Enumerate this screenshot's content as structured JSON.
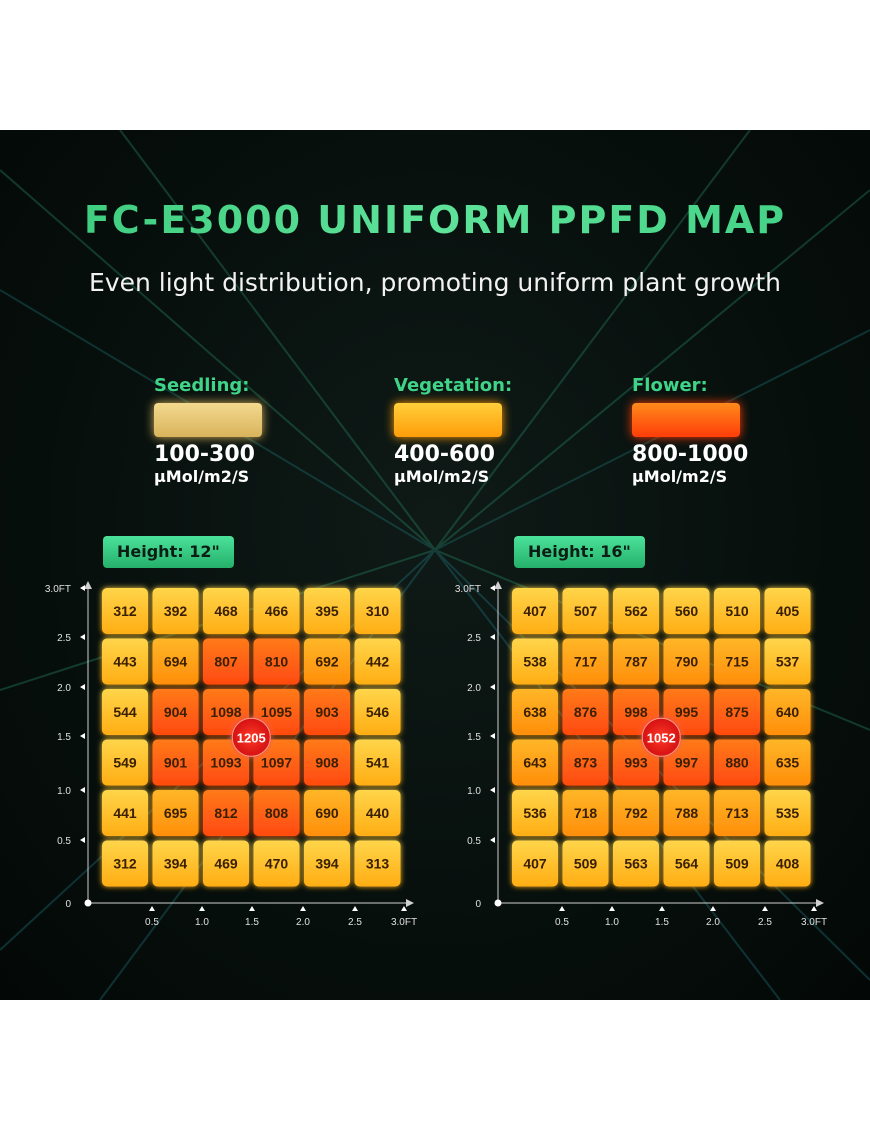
{
  "title": "FC-E3000 UNIFORM PPFD MAP",
  "subtitle": "Even light distribution, promoting uniform plant growth",
  "legend": [
    {
      "name": "Seedling:",
      "range": "100-300",
      "unit": "μMol/m2/S",
      "color": "#e8c878"
    },
    {
      "name": "Vegetation:",
      "range": "400-600",
      "unit": "μMol/m2/S",
      "color": "#ffb21a"
    },
    {
      "name": "Flower:",
      "range": "800-1000",
      "unit": "μMol/m2/S",
      "color": "#ff5512"
    }
  ],
  "chart_data": [
    {
      "type": "heatmap",
      "title": "Height: 12\"",
      "x_ticks": [
        "0.5",
        "1.0",
        "1.5",
        "2.0",
        "2.5",
        "3.0FT"
      ],
      "y_ticks": [
        "3.0FT",
        "2.5",
        "2.0",
        "1.5",
        "1.0",
        "0.5",
        "0"
      ],
      "values": [
        [
          312,
          392,
          468,
          466,
          395,
          310
        ],
        [
          443,
          694,
          807,
          810,
          692,
          442
        ],
        [
          544,
          904,
          1098,
          1095,
          903,
          546
        ],
        [
          549,
          901,
          1093,
          1097,
          908,
          541
        ],
        [
          441,
          695,
          812,
          808,
          690,
          440
        ],
        [
          312,
          394,
          469,
          470,
          394,
          313
        ]
      ],
      "peak": 1205
    },
    {
      "type": "heatmap",
      "title": "Height: 16\"",
      "x_ticks": [
        "0.5",
        "1.0",
        "1.5",
        "2.0",
        "2.5",
        "3.0FT"
      ],
      "y_ticks": [
        "3.0FT",
        "2.5",
        "2.0",
        "1.5",
        "1.0",
        "0.5",
        "0"
      ],
      "values": [
        [
          407,
          507,
          562,
          560,
          510,
          405
        ],
        [
          538,
          717,
          787,
          790,
          715,
          537
        ],
        [
          638,
          876,
          998,
          995,
          875,
          640
        ],
        [
          643,
          873,
          993,
          997,
          880,
          635
        ],
        [
          536,
          718,
          792,
          788,
          713,
          535
        ],
        [
          407,
          509,
          563,
          564,
          509,
          408
        ]
      ],
      "peak": 1052
    }
  ]
}
